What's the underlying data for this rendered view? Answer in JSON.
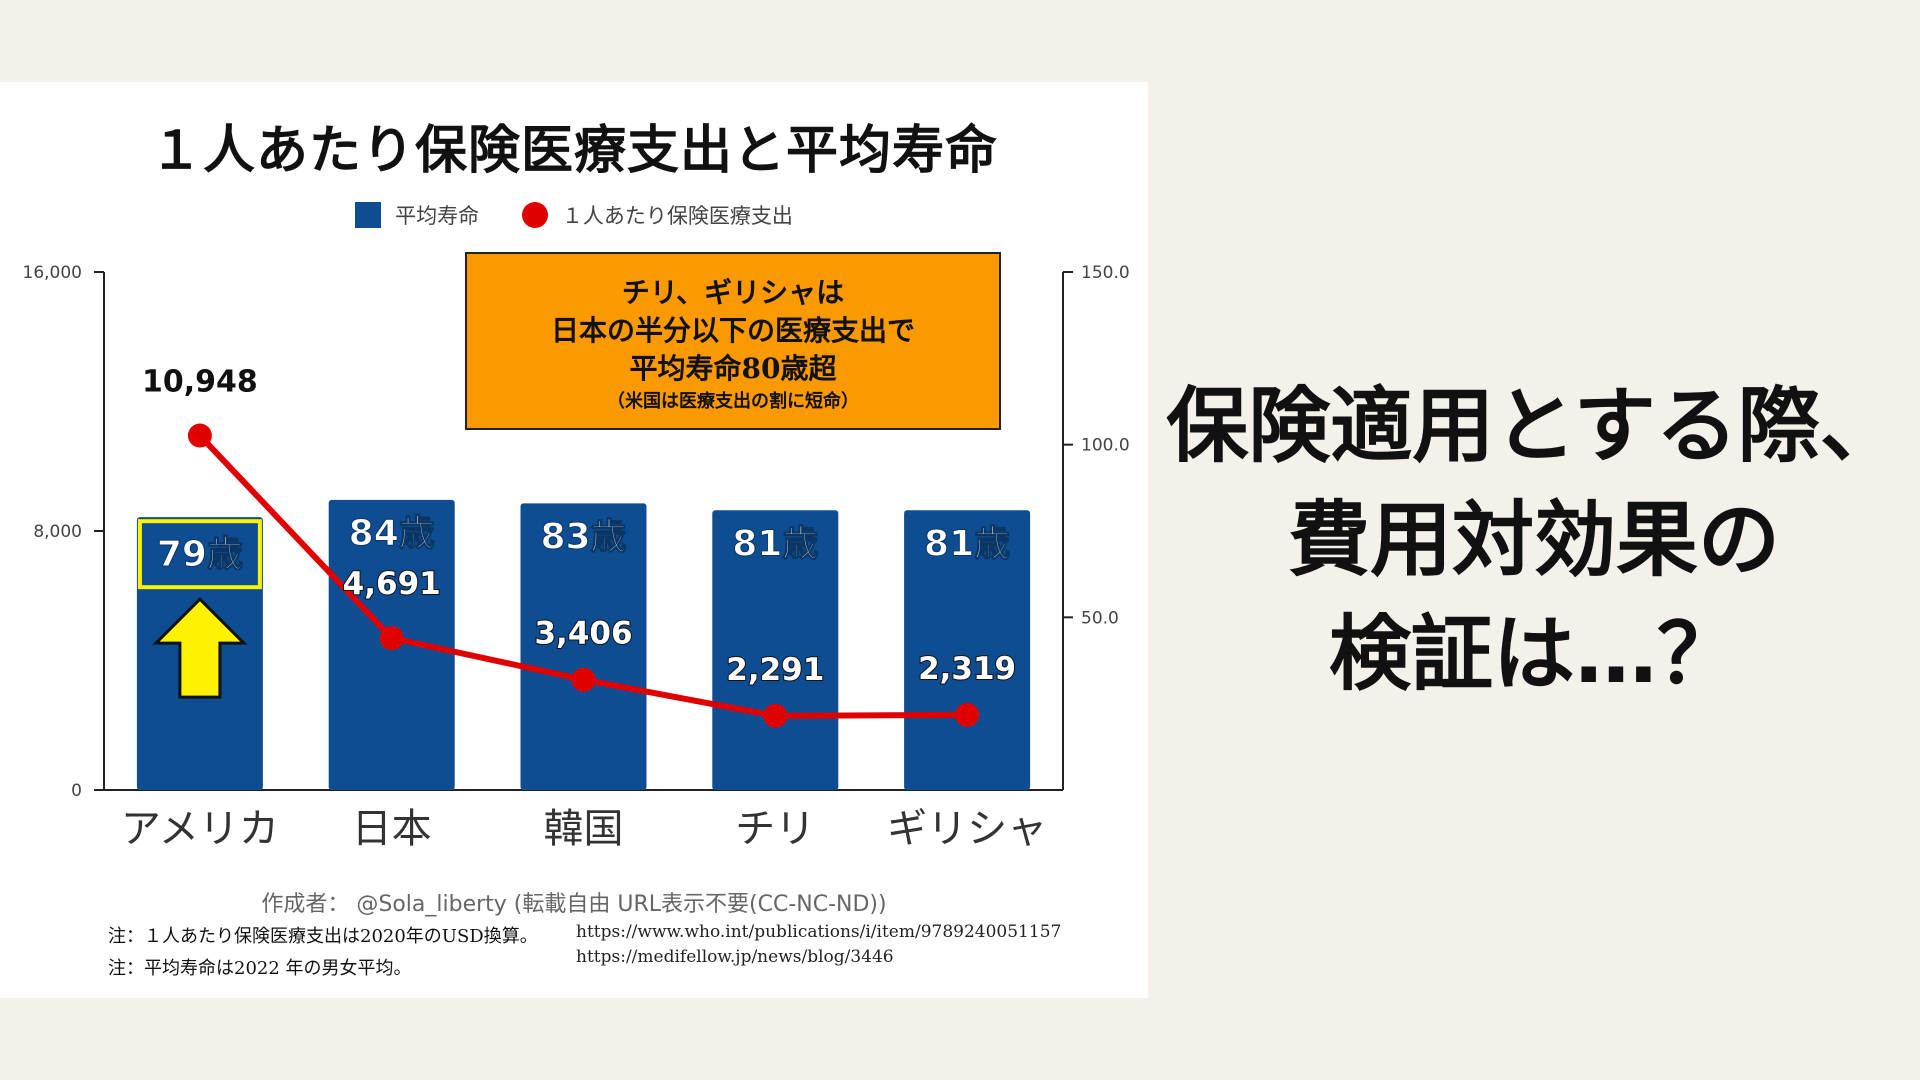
{
  "chart_data": {
    "type": "bar",
    "title": "１人あたり保険医療支出と平均寿命",
    "categories": [
      "アメリカ",
      "日本",
      "韓国",
      "チリ",
      "ギリシャ"
    ],
    "series": [
      {
        "name": "平均寿命",
        "kind": "bar",
        "axis": "right",
        "values": [
          79,
          84,
          83,
          81,
          81
        ],
        "labels": [
          "79歳",
          "84歳",
          "83歳",
          "81歳",
          "81歳"
        ],
        "color": "#0e4d92"
      },
      {
        "name": "１人あたり保険医療支出",
        "kind": "line",
        "axis": "left",
        "values": [
          10948,
          4691,
          3406,
          2291,
          2319
        ],
        "labels": [
          "10,948",
          "4,691",
          "3,406",
          "2,291",
          "2,319"
        ],
        "color": "#e00000"
      }
    ],
    "ylim_left": [
      0,
      16000
    ],
    "yticks_left": [
      "0",
      "8,000",
      "16,000"
    ],
    "yticks_left_values": [
      0,
      8000,
      16000
    ],
    "ylim_right": [
      0,
      150
    ],
    "yticks_right": [
      "50.0",
      "100.0",
      "150.0"
    ],
    "yticks_right_values": [
      50,
      100,
      150
    ],
    "highlight_category": "アメリカ",
    "legend_position": "top-center",
    "grid": false
  },
  "callout": {
    "line1": "チリ、ギリシャは",
    "line2": "日本の半分以下の医療支出で",
    "line3": "平均寿命80歳超",
    "line4": "（米国は医療支出の割に短命）"
  },
  "credit": "作成者： @Sola_liberty (転載自由 URL表示不要(CC-NC-ND))",
  "notes": [
    "注：１人あたり保険医療支出は2020年のUSD換算。",
    "注：平均寿命は2022 年の男女平均。"
  ],
  "urls": [
    "https://www.who.int/publications/i/item/9789240051157",
    "https://medifellow.jp/news/blog/3446"
  ],
  "side_text": {
    "line1": "保険適用とする際、",
    "line2": "費用対効果の",
    "line3": "検証は…？"
  },
  "colors": {
    "background": "#f4f1ea",
    "bar": "#0e4d92",
    "line": "#e00000",
    "callout": "#fb9a00",
    "highlight": "#fff200"
  }
}
